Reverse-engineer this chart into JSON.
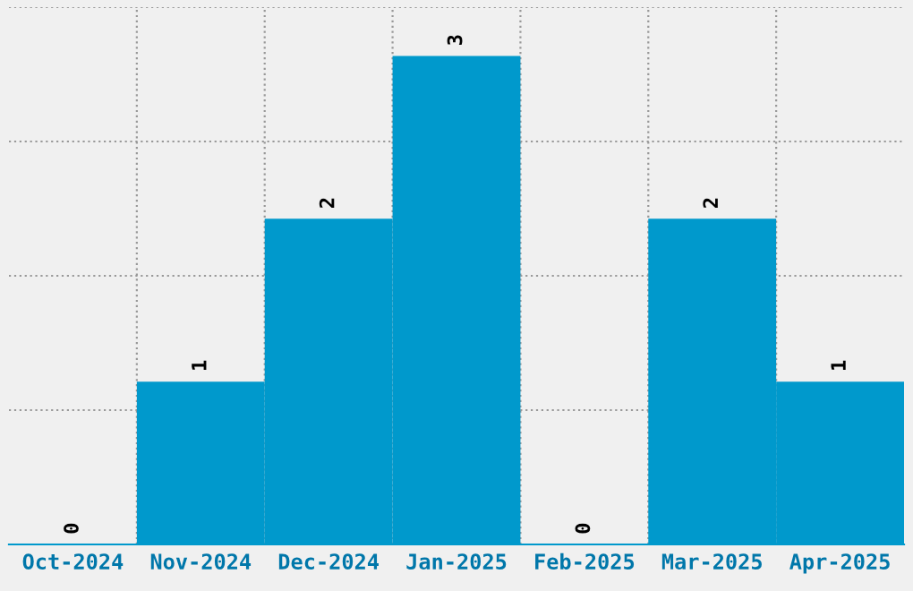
{
  "chart_data": {
    "type": "bar",
    "categories": [
      "Oct-2024",
      "Nov-2024",
      "Dec-2024",
      "Jan-2025",
      "Feb-2025",
      "Mar-2025",
      "Apr-2025"
    ],
    "values": [
      0,
      1,
      2,
      3,
      0,
      2,
      1
    ],
    "color": "#0099cc",
    "ylim": [
      0,
      3.3
    ],
    "yticks": [
      {
        "value": 0.825,
        "label": null
      },
      {
        "value": 1.65,
        "label": null
      },
      {
        "value": 2.475,
        "label": null
      },
      {
        "value": 3.3,
        "label": null
      }
    ],
    "data_labels": true,
    "grid": true,
    "tick_labels": "x"
  }
}
